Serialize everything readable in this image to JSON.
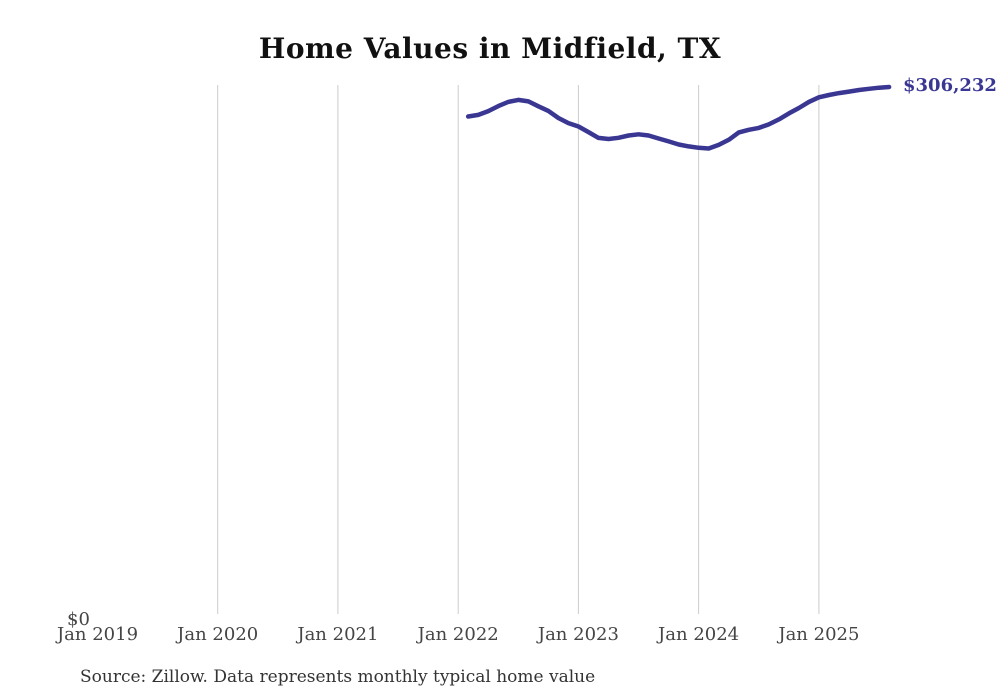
{
  "page": {
    "background_color": "#ffffff"
  },
  "chart_data": {
    "type": "line",
    "title": "Home Values in Midfield, TX",
    "xlabel": "",
    "ylabel": "",
    "ylim": [
      0,
      306232
    ],
    "grid": "vertical-only",
    "legend": "none",
    "line_color": "#3a3793",
    "gridline_color": "#cccccc",
    "end_label": "$306,232",
    "y_axis_label": "$0",
    "x_ticks": [
      "Jan 2019",
      "Jan 2020",
      "Jan 2021",
      "Jan 2022",
      "Jan 2023",
      "Jan 2024",
      "Jan 2025"
    ],
    "x": [
      "Feb 2022",
      "Mar 2022",
      "Apr 2022",
      "May 2022",
      "Jun 2022",
      "Jul 2022",
      "Aug 2022",
      "Sep 2022",
      "Oct 2022",
      "Nov 2022",
      "Dec 2022",
      "Jan 2023",
      "Feb 2023",
      "Mar 2023",
      "Apr 2023",
      "May 2023",
      "Jun 2023",
      "Jul 2023",
      "Aug 2023",
      "Sep 2023",
      "Oct 2023",
      "Nov 2023",
      "Dec 2023",
      "Jan 2024",
      "Feb 2024",
      "Mar 2024",
      "Apr 2024",
      "May 2024",
      "Jun 2024",
      "Jul 2024",
      "Aug 2024",
      "Sep 2024",
      "Oct 2024",
      "Nov 2024",
      "Dec 2024",
      "Jan 2025",
      "Feb 2025",
      "Mar 2025",
      "Apr 2025",
      "May 2025",
      "Jun 2025",
      "Jul 2025",
      "Aug 2025"
    ],
    "values": [
      289200,
      290100,
      292300,
      295200,
      297600,
      298800,
      297900,
      295100,
      292400,
      288300,
      285400,
      283400,
      280200,
      276800,
      276200,
      276900,
      278200,
      278900,
      278200,
      276500,
      274800,
      273000,
      271900,
      271100,
      270700,
      272800,
      275700,
      280000,
      281500,
      282600,
      284600,
      287500,
      291000,
      294100,
      297600,
      300300,
      301600,
      302700,
      303600,
      304500,
      305200,
      305800,
      306232
    ],
    "source_note": "Source: Zillow. Data represents monthly typical home value"
  }
}
